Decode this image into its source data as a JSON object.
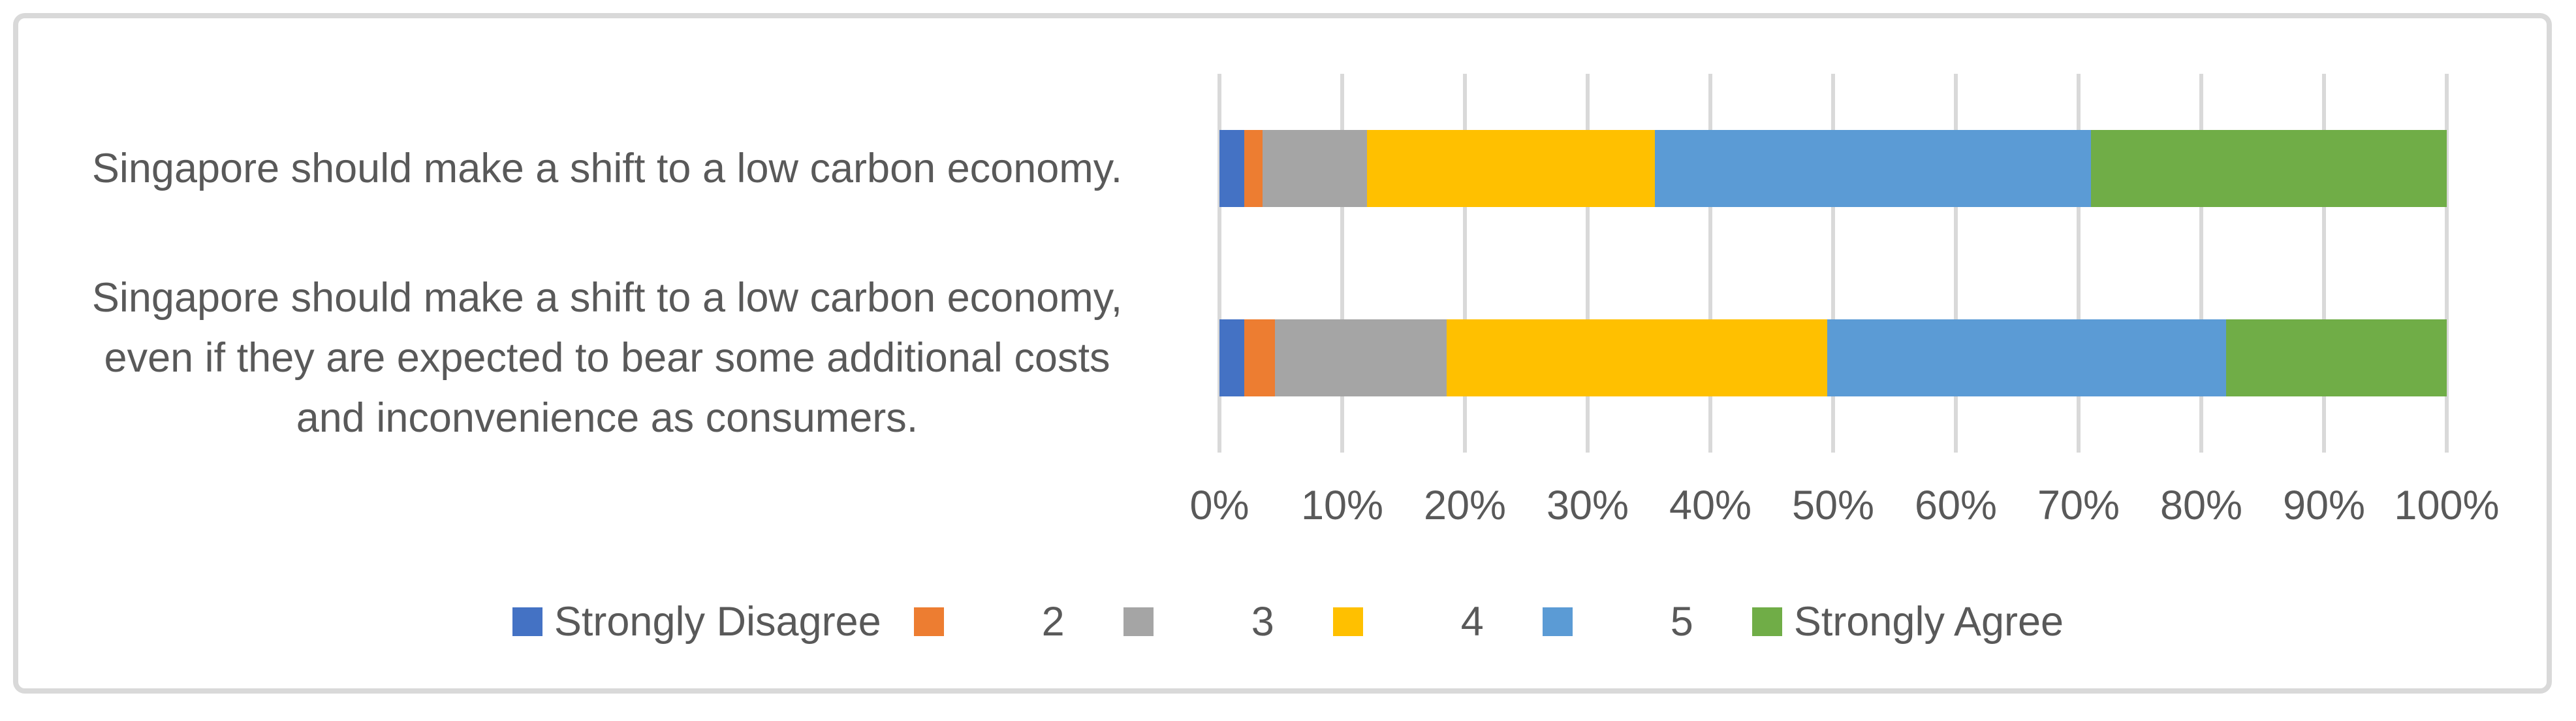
{
  "chart_data": {
    "type": "bar",
    "stacked": true,
    "orientation": "horizontal",
    "title": "",
    "xlabel": "",
    "ylabel": "",
    "xlim": [
      0,
      100
    ],
    "grid": "vertical",
    "gridline_color": "#D9D9D9",
    "frame_color": "#D9D9D9",
    "text_color": "#595959",
    "legend_position": "bottom",
    "x_ticks": [
      "0%",
      "10%",
      "20%",
      "30%",
      "40%",
      "50%",
      "60%",
      "70%",
      "80%",
      "90%",
      "100%"
    ],
    "categories": [
      {
        "label": "Singapore should make a shift to a low carbon economy.",
        "lines": [
          "Singapore should make a shift to a low carbon economy."
        ]
      },
      {
        "label": "Singapore should make a shift to a low carbon economy, even if they are expected to bear some additional costs and inconvenience as consumers.",
        "lines": [
          "Singapore should make a shift to a low carbon economy,",
          "even if they are expected to bear some additional costs",
          "and inconvenience as consumers."
        ]
      }
    ],
    "series": [
      {
        "name": "Strongly Disagree",
        "color": "#4472C4",
        "values": [
          2,
          2
        ]
      },
      {
        "name": "2",
        "color": "#ED7D31",
        "values": [
          1.5,
          2.5
        ]
      },
      {
        "name": "3",
        "color": "#A5A5A5",
        "values": [
          8.5,
          14
        ]
      },
      {
        "name": "4",
        "color": "#FFC000",
        "values": [
          23.5,
          31
        ]
      },
      {
        "name": "5",
        "color": "#5B9BD5",
        "values": [
          35.5,
          32.5
        ]
      },
      {
        "name": "Strongly Agree",
        "color": "#70AD47",
        "values": [
          29,
          18
        ]
      }
    ],
    "values_unit": "%"
  }
}
